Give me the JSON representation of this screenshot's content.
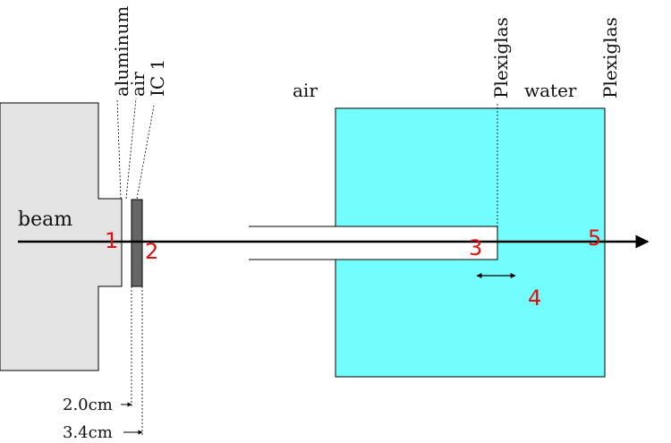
{
  "labels": {
    "beam": "beam",
    "aluminum": "aluminum",
    "air_top": "air",
    "ic1": "IC 1",
    "air_mid": "air",
    "plexiglas_left": "Plexiglas",
    "water": "water",
    "plexiglas_right": "Plexiglas"
  },
  "points": [
    "1",
    "2",
    "3",
    "4",
    "5"
  ],
  "dimensions": {
    "d1": "2.0cm",
    "d2": "3.4cm"
  },
  "colors": {
    "nozzle": "#e4e4e4",
    "chamber": "#666666",
    "water": "#74fdfd",
    "point_label": "#e01010",
    "line": "#000000"
  }
}
